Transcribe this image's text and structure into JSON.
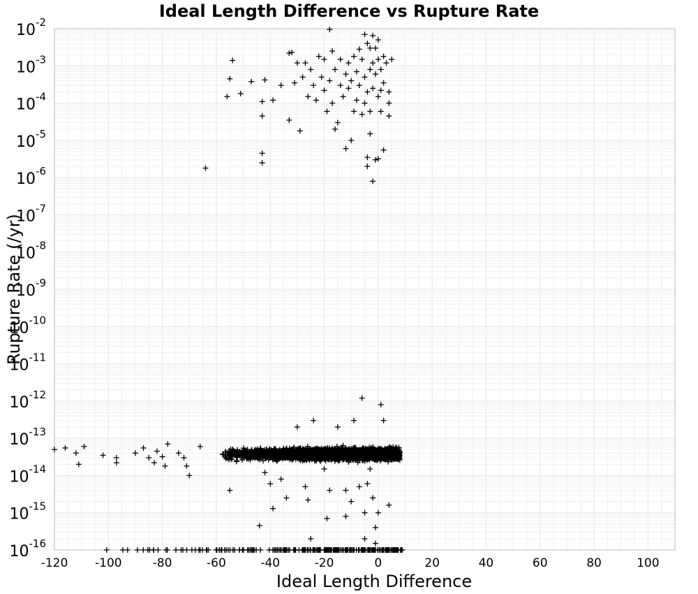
{
  "chart_data": {
    "type": "scatter",
    "title": "Ideal Length Difference vs Rupture Rate",
    "xlabel": "Ideal Length Difference",
    "ylabel": "Rupture Rate (/yr)",
    "xlim": [
      -120,
      110
    ],
    "ylim": [
      1e-16,
      0.01
    ],
    "yscale": "log",
    "grid": true,
    "marker": "plus",
    "marker_color": "#000000",
    "xticks": [
      "-120",
      "-100",
      "-80",
      "-60",
      "-40",
      "-20",
      "0",
      "20",
      "40",
      "60",
      "80",
      "100"
    ],
    "xtick_values": [
      -120,
      -100,
      -80,
      -60,
      -40,
      -20,
      0,
      20,
      40,
      60,
      80,
      100
    ],
    "yticks": [
      {
        "base": "10",
        "exp": "-16"
      },
      {
        "base": "10",
        "exp": "-15"
      },
      {
        "base": "10",
        "exp": "-14"
      },
      {
        "base": "10",
        "exp": "-13"
      },
      {
        "base": "10",
        "exp": "-12"
      },
      {
        "base": "10",
        "exp": "-11"
      },
      {
        "base": "10",
        "exp": "-10"
      },
      {
        "base": "10",
        "exp": "-9"
      },
      {
        "base": "10",
        "exp": "-8"
      },
      {
        "base": "10",
        "exp": "-7"
      },
      {
        "base": "10",
        "exp": "-6"
      },
      {
        "base": "10",
        "exp": "-5"
      },
      {
        "base": "10",
        "exp": "-4"
      },
      {
        "base": "10",
        "exp": "-3"
      },
      {
        "base": "10",
        "exp": "-2"
      }
    ],
    "ytick_exponents": [
      -16,
      -15,
      -14,
      -13,
      -12,
      -11,
      -10,
      -9,
      -8,
      -7,
      -6,
      -5,
      -4,
      -3,
      -2
    ],
    "series": [
      {
        "points_high": [
          [
            -64,
            1.8e-06
          ],
          [
            -56,
            0.00015
          ],
          [
            -55,
            0.00045
          ],
          [
            -54,
            0.0014
          ],
          [
            -51,
            0.00018
          ],
          [
            -47,
            0.00038
          ],
          [
            -43,
            4.5e-06
          ],
          [
            -43,
            2.5e-06
          ],
          [
            -43,
            4.5e-05
          ],
          [
            -43,
            0.00011
          ],
          [
            -42,
            0.00042
          ],
          [
            -39,
            0.00012
          ],
          [
            -36,
            0.0003
          ],
          [
            -33,
            3.5e-05
          ],
          [
            -33,
            0.0022
          ],
          [
            -32,
            0.0023
          ],
          [
            -31,
            0.00035
          ],
          [
            -30,
            0.0012
          ],
          [
            -29,
            1.8e-05
          ],
          [
            -28,
            0.0005
          ],
          [
            -27,
            0.0012
          ],
          [
            -26,
            0.00015
          ],
          [
            -25,
            0.0008
          ],
          [
            -24,
            0.0003
          ],
          [
            -23,
            0.00012
          ],
          [
            -22,
            0.0018
          ],
          [
            -21,
            0.0005
          ],
          [
            -20,
            0.00022
          ],
          [
            -20,
            0.0015
          ],
          [
            -19,
            6e-05
          ],
          [
            -18,
            0.0095
          ],
          [
            -18,
            0.0004
          ],
          [
            -17,
            0.0025
          ],
          [
            -17,
            0.0001
          ],
          [
            -16,
            2e-05
          ],
          [
            -16,
            0.0008
          ],
          [
            -15,
            3e-05
          ],
          [
            -14,
            0.0015
          ],
          [
            -14,
            0.0003
          ],
          [
            -13,
            0.00015
          ],
          [
            -12,
            0.0006
          ],
          [
            -12,
            6e-06
          ],
          [
            -11,
            0.0012
          ],
          [
            -11,
            0.00025
          ],
          [
            -10,
            0.0004
          ],
          [
            -10,
            1e-05
          ],
          [
            -9,
            0.0018
          ],
          [
            -9,
            6e-05
          ],
          [
            -8,
            0.0007
          ],
          [
            -8,
            0.00012
          ],
          [
            -7,
            0.0028
          ],
          [
            -7,
            0.0003
          ],
          [
            -6,
            0.0015
          ],
          [
            -6,
            5e-05
          ],
          [
            -5,
            0.007
          ],
          [
            -5,
            0.0005
          ],
          [
            -5,
            0.0001
          ],
          [
            -4,
            0.004
          ],
          [
            -4,
            0.0002
          ],
          [
            -4,
            3.5e-06
          ],
          [
            -4,
            2e-06
          ],
          [
            -3,
            0.003
          ],
          [
            -3,
            0.0008
          ],
          [
            -3,
            6e-05
          ],
          [
            -3,
            1.5e-05
          ],
          [
            -2,
            0.0065
          ],
          [
            -2,
            0.0012
          ],
          [
            -2,
            0.00025
          ],
          [
            -2,
            8e-07
          ],
          [
            -1,
            0.003
          ],
          [
            -1,
            0.0006
          ],
          [
            -1,
            3e-06
          ],
          [
            0,
            0.005
          ],
          [
            0,
            0.0015
          ],
          [
            0,
            0.00015
          ],
          [
            0,
            3.2e-06
          ],
          [
            1,
            0.0008
          ],
          [
            1,
            6e-05
          ],
          [
            1,
            0.00022
          ],
          [
            2,
            0.0018
          ],
          [
            2,
            5.5e-06
          ],
          [
            2,
            0.00035
          ],
          [
            3,
            0.0012
          ],
          [
            4,
            0.0002
          ],
          [
            4,
            0.0001
          ],
          [
            4,
            4.5e-05
          ],
          [
            5,
            0.0015
          ]
        ],
        "points_low_outliers": [
          [
            -120,
            5e-14
          ],
          [
            -116,
            5.5e-14
          ],
          [
            -112,
            4e-14
          ],
          [
            -111,
            2e-14
          ],
          [
            -109,
            6e-14
          ],
          [
            -102,
            3.5e-14
          ],
          [
            -97,
            3e-14
          ],
          [
            -97,
            2.2e-14
          ],
          [
            -90,
            4e-14
          ],
          [
            -87,
            5.5e-14
          ],
          [
            -85,
            3e-14
          ],
          [
            -83,
            2.2e-14
          ],
          [
            -82,
            4.5e-14
          ],
          [
            -80,
            3.2e-14
          ],
          [
            -79,
            1.8e-14
          ],
          [
            -78,
            7e-14
          ],
          [
            -74,
            4e-14
          ],
          [
            -72,
            3e-14
          ],
          [
            -71,
            1.8e-14
          ],
          [
            -70,
            1e-14
          ],
          [
            -66,
            6e-14
          ],
          [
            -55,
            4e-15
          ],
          [
            -44,
            4.5e-16
          ],
          [
            -42,
            1.2e-14
          ],
          [
            -40,
            6e-15
          ],
          [
            -39,
            1.3e-15
          ],
          [
            -36,
            8e-15
          ],
          [
            -34,
            2.5e-15
          ],
          [
            -30,
            2e-13
          ],
          [
            -27,
            5e-15
          ],
          [
            -26,
            2.2e-15
          ],
          [
            -25,
            2e-16
          ],
          [
            -24,
            3e-13
          ],
          [
            -20,
            1.5e-14
          ],
          [
            -19,
            7e-16
          ],
          [
            -18,
            4e-15
          ],
          [
            -15,
            2e-13
          ],
          [
            -12,
            4e-15
          ],
          [
            -12,
            8e-16
          ],
          [
            -10,
            2e-15
          ],
          [
            -9,
            3e-13
          ],
          [
            -7,
            5e-15
          ],
          [
            -6,
            1.2e-12
          ],
          [
            -5,
            1e-15
          ],
          [
            -4,
            6e-15
          ],
          [
            -3,
            1.5e-14
          ],
          [
            -2,
            2.5e-15
          ],
          [
            -1,
            4e-16
          ],
          [
            0,
            1e-15
          ],
          [
            1,
            8e-13
          ],
          [
            2,
            3e-13
          ],
          [
            4,
            1.6e-15
          ],
          [
            -5,
            2e-16
          ],
          [
            -1,
            1.5e-16
          ]
        ]
      }
    ]
  }
}
